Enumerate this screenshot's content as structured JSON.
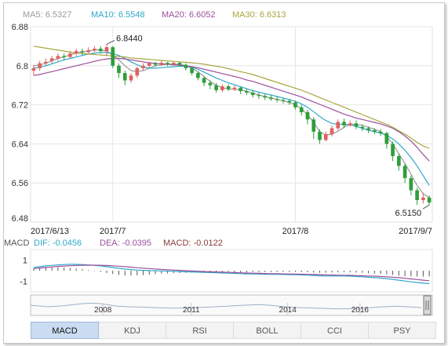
{
  "chart_data": {
    "type": "candlestick",
    "ma_legend": [
      {
        "label": "MA5: 6.5327",
        "color": "#9a9a9a"
      },
      {
        "label": "MA10: 6.5548",
        "color": "#2ea8c9"
      },
      {
        "label": "MA20: 6.6052",
        "color": "#9c4f9c"
      },
      {
        "label": "MA30: 6.6313",
        "color": "#a9a640"
      }
    ],
    "y_ticks": [
      "6.88",
      "6.8",
      "6.72",
      "6.64",
      "6.56",
      "6.48"
    ],
    "ylim": [
      6.48,
      6.88
    ],
    "x_labels": [
      {
        "label": "2017/6/13",
        "index": 0
      },
      {
        "label": "2017/7",
        "index": 13
      },
      {
        "label": "2017/8",
        "index": 43
      },
      {
        "label": "2017/9/7",
        "index": 65
      }
    ],
    "annotations": [
      {
        "text": "6.8440",
        "index": 12,
        "value": 6.844
      },
      {
        "text": "6.5150",
        "index": 65,
        "value": 6.515
      }
    ],
    "candles": [
      [
        6.79,
        6.795,
        6.78,
        6.802
      ],
      [
        6.795,
        6.805,
        6.79,
        6.81
      ],
      [
        6.805,
        6.808,
        6.8,
        6.815
      ],
      [
        6.81,
        6.815,
        6.805,
        6.82
      ],
      [
        6.815,
        6.82,
        6.81,
        6.825
      ],
      [
        6.82,
        6.818,
        6.812,
        6.825
      ],
      [
        6.818,
        6.825,
        6.815,
        6.83
      ],
      [
        6.825,
        6.83,
        6.82,
        6.835
      ],
      [
        6.83,
        6.828,
        6.822,
        6.835
      ],
      [
        6.828,
        6.832,
        6.825,
        6.838
      ],
      [
        6.832,
        6.835,
        6.828,
        6.84
      ],
      [
        6.835,
        6.83,
        6.825,
        6.84
      ],
      [
        6.83,
        6.838,
        6.82,
        6.844
      ],
      [
        6.838,
        6.8,
        6.795,
        6.84
      ],
      [
        6.8,
        6.785,
        6.775,
        6.805
      ],
      [
        6.785,
        6.77,
        6.76,
        6.79
      ],
      [
        6.77,
        6.78,
        6.765,
        6.785
      ],
      [
        6.78,
        6.795,
        6.775,
        6.798
      ],
      [
        6.795,
        6.8,
        6.79,
        6.805
      ],
      [
        6.8,
        6.805,
        6.795,
        6.808
      ],
      [
        6.805,
        6.802,
        6.798,
        6.808
      ],
      [
        6.802,
        6.806,
        6.8,
        6.81
      ],
      [
        6.806,
        6.803,
        6.799,
        6.808
      ],
      [
        6.803,
        6.806,
        6.8,
        6.809
      ],
      [
        6.806,
        6.802,
        6.798,
        6.808
      ],
      [
        6.802,
        6.795,
        6.79,
        6.805
      ],
      [
        6.795,
        6.785,
        6.78,
        6.798
      ],
      [
        6.785,
        6.775,
        6.77,
        6.788
      ],
      [
        6.775,
        6.765,
        6.758,
        6.778
      ],
      [
        6.765,
        6.76,
        6.752,
        6.77
      ],
      [
        6.76,
        6.75,
        6.745,
        6.765
      ],
      [
        6.75,
        6.758,
        6.746,
        6.762
      ],
      [
        6.758,
        6.752,
        6.748,
        6.762
      ],
      [
        6.752,
        6.755,
        6.748,
        6.76
      ],
      [
        6.755,
        6.748,
        6.742,
        6.758
      ],
      [
        6.748,
        6.745,
        6.74,
        6.752
      ],
      [
        6.745,
        6.74,
        6.735,
        6.75
      ],
      [
        6.74,
        6.738,
        6.732,
        6.745
      ],
      [
        6.738,
        6.735,
        6.73,
        6.742
      ],
      [
        6.735,
        6.732,
        6.728,
        6.74
      ],
      [
        6.732,
        6.73,
        6.725,
        6.738
      ],
      [
        6.73,
        6.728,
        6.722,
        6.735
      ],
      [
        6.728,
        6.725,
        6.72,
        6.732
      ],
      [
        6.725,
        6.715,
        6.71,
        6.728
      ],
      [
        6.715,
        6.705,
        6.698,
        6.72
      ],
      [
        6.705,
        6.69,
        6.68,
        6.71
      ],
      [
        6.69,
        6.665,
        6.65,
        6.695
      ],
      [
        6.665,
        6.648,
        6.64,
        6.67
      ],
      [
        6.648,
        6.66,
        6.645,
        6.665
      ],
      [
        6.66,
        6.672,
        6.655,
        6.678
      ],
      [
        6.672,
        6.685,
        6.668,
        6.69
      ],
      [
        6.685,
        6.678,
        6.672,
        6.692
      ],
      [
        6.678,
        6.682,
        6.675,
        6.688
      ],
      [
        6.682,
        6.675,
        6.67,
        6.688
      ],
      [
        6.675,
        6.672,
        6.666,
        6.68
      ],
      [
        6.672,
        6.668,
        6.662,
        6.676
      ],
      [
        6.668,
        6.665,
        6.66,
        6.672
      ],
      [
        6.665,
        6.662,
        6.656,
        6.67
      ],
      [
        6.662,
        6.64,
        6.63,
        6.665
      ],
      [
        6.64,
        6.615,
        6.605,
        6.645
      ],
      [
        6.615,
        6.595,
        6.585,
        6.62
      ],
      [
        6.595,
        6.57,
        6.56,
        6.6
      ],
      [
        6.57,
        6.545,
        6.535,
        6.575
      ],
      [
        6.545,
        6.525,
        6.515,
        6.55
      ],
      [
        6.525,
        6.53,
        6.518,
        6.54
      ],
      [
        6.53,
        6.52,
        6.515,
        6.535
      ]
    ],
    "ma_lines": {
      "ma5": [
        6.8,
        6.802,
        6.805,
        6.81,
        6.815,
        6.818,
        6.822,
        6.826,
        6.828,
        6.83,
        6.832,
        6.832,
        6.83,
        6.822,
        6.812,
        6.8,
        6.79,
        6.788,
        6.79,
        6.795,
        6.8,
        6.802,
        6.803,
        6.803,
        6.803,
        6.8,
        6.795,
        6.788,
        6.778,
        6.768,
        6.76,
        6.755,
        6.752,
        6.752,
        6.75,
        6.748,
        6.744,
        6.74,
        6.737,
        6.734,
        6.731,
        6.728,
        6.725,
        6.72,
        6.712,
        6.7,
        6.684,
        6.665,
        6.658,
        6.66,
        6.666,
        6.674,
        6.68,
        6.68,
        6.678,
        6.674,
        6.67,
        6.665,
        6.655,
        6.64,
        6.62,
        6.6,
        6.578,
        6.555,
        6.538,
        6.53
      ],
      "ma10": [
        6.795,
        6.797,
        6.8,
        6.804,
        6.808,
        6.812,
        6.815,
        6.818,
        6.821,
        6.824,
        6.826,
        6.827,
        6.827,
        6.825,
        6.821,
        6.815,
        6.808,
        6.802,
        6.797,
        6.795,
        6.795,
        6.796,
        6.797,
        6.798,
        6.799,
        6.799,
        6.797,
        6.793,
        6.787,
        6.781,
        6.775,
        6.77,
        6.765,
        6.761,
        6.757,
        6.753,
        6.749,
        6.746,
        6.743,
        6.74,
        6.737,
        6.734,
        6.731,
        6.727,
        6.722,
        6.715,
        6.706,
        6.696,
        6.688,
        6.682,
        6.68,
        6.68,
        6.679,
        6.676,
        6.672,
        6.668,
        6.665,
        6.662,
        6.658,
        6.65,
        6.64,
        6.627,
        6.612,
        6.595,
        6.575,
        6.555
      ],
      "ma20": [
        6.78,
        6.782,
        6.785,
        6.788,
        6.791,
        6.794,
        6.797,
        6.8,
        6.803,
        6.806,
        6.809,
        6.812,
        6.814,
        6.815,
        6.815,
        6.814,
        6.812,
        6.81,
        6.808,
        6.806,
        6.805,
        6.804,
        6.803,
        6.802,
        6.801,
        6.8,
        6.798,
        6.796,
        6.793,
        6.79,
        6.787,
        6.784,
        6.781,
        6.778,
        6.775,
        6.771,
        6.768,
        6.764,
        6.76,
        6.756,
        6.752,
        6.748,
        6.744,
        6.74,
        6.736,
        6.731,
        6.726,
        6.721,
        6.716,
        6.711,
        6.706,
        6.701,
        6.697,
        6.693,
        6.69,
        6.687,
        6.684,
        6.681,
        6.677,
        6.672,
        6.665,
        6.656,
        6.646,
        6.633,
        6.618,
        6.605
      ],
      "ma30": [
        6.84,
        6.838,
        6.836,
        6.834,
        6.832,
        6.83,
        6.828,
        6.826,
        6.825,
        6.824,
        6.823,
        6.822,
        6.821,
        6.82,
        6.819,
        6.818,
        6.816,
        6.815,
        6.814,
        6.813,
        6.812,
        6.811,
        6.81,
        6.809,
        6.808,
        6.807,
        6.806,
        6.805,
        6.803,
        6.801,
        6.799,
        6.797,
        6.794,
        6.791,
        6.788,
        6.785,
        6.782,
        6.778,
        6.774,
        6.77,
        6.766,
        6.762,
        6.758,
        6.754,
        6.75,
        6.745,
        6.74,
        6.735,
        6.73,
        6.725,
        6.72,
        6.715,
        6.71,
        6.705,
        6.7,
        6.695,
        6.69,
        6.685,
        6.68,
        6.674,
        6.667,
        6.66,
        6.652,
        6.643,
        6.636,
        6.631
      ]
    },
    "colors": {
      "up": "#e06060",
      "down": "#2e9e3a",
      "grid": "#e6e6e6"
    },
    "macd": {
      "tag": "MACD",
      "legend": [
        {
          "label": "DIF: -0.0456",
          "color": "#2ea8c9"
        },
        {
          "label": "DEA: -0.0395",
          "color": "#9c4f9c"
        },
        {
          "label": "MACD: -0.0122",
          "color": "#8a3a3a"
        }
      ],
      "y_ticks": [
        "1",
        "-1"
      ],
      "ylim": [
        -2,
        2
      ],
      "dif": [
        0.3,
        0.38,
        0.45,
        0.5,
        0.55,
        0.58,
        0.6,
        0.6,
        0.58,
        0.55,
        0.5,
        0.45,
        0.38,
        0.3,
        0.22,
        0.15,
        0.1,
        0.06,
        0.03,
        0.01,
        0.0,
        -0.02,
        -0.04,
        -0.06,
        -0.08,
        -0.1,
        -0.12,
        -0.14,
        -0.16,
        -0.18,
        -0.2,
        -0.22,
        -0.24,
        -0.26,
        -0.28,
        -0.3,
        -0.31,
        -0.32,
        -0.33,
        -0.34,
        -0.35,
        -0.36,
        -0.37,
        -0.38,
        -0.4,
        -0.42,
        -0.45,
        -0.48,
        -0.5,
        -0.5,
        -0.5,
        -0.5,
        -0.52,
        -0.55,
        -0.58,
        -0.62,
        -0.66,
        -0.7,
        -0.75,
        -0.82,
        -0.9,
        -0.98,
        -1.05,
        -1.12,
        -1.18,
        -1.22
      ],
      "dea": [
        0.2,
        0.25,
        0.3,
        0.35,
        0.4,
        0.44,
        0.47,
        0.5,
        0.51,
        0.52,
        0.52,
        0.51,
        0.49,
        0.46,
        0.42,
        0.38,
        0.33,
        0.28,
        0.24,
        0.2,
        0.16,
        0.12,
        0.09,
        0.06,
        0.03,
        0.0,
        -0.03,
        -0.05,
        -0.08,
        -0.1,
        -0.12,
        -0.14,
        -0.16,
        -0.18,
        -0.2,
        -0.22,
        -0.24,
        -0.25,
        -0.27,
        -0.28,
        -0.29,
        -0.3,
        -0.31,
        -0.32,
        -0.33,
        -0.35,
        -0.36,
        -0.38,
        -0.4,
        -0.41,
        -0.42,
        -0.43,
        -0.44,
        -0.46,
        -0.48,
        -0.5,
        -0.52,
        -0.55,
        -0.58,
        -0.62,
        -0.66,
        -0.72,
        -0.78,
        -0.84,
        -0.9,
        -0.95
      ],
      "hist": [
        0.2,
        0.26,
        0.3,
        0.3,
        0.3,
        0.28,
        0.26,
        0.2,
        0.14,
        0.06,
        -0.04,
        -0.12,
        -0.22,
        -0.32,
        -0.4,
        -0.46,
        -0.46,
        -0.44,
        -0.42,
        -0.38,
        -0.32,
        -0.28,
        -0.26,
        -0.24,
        -0.22,
        -0.2,
        -0.18,
        -0.18,
        -0.16,
        -0.16,
        -0.16,
        -0.16,
        -0.16,
        -0.16,
        -0.16,
        -0.16,
        -0.14,
        -0.14,
        -0.12,
        -0.12,
        -0.12,
        -0.12,
        -0.12,
        -0.12,
        -0.14,
        -0.14,
        -0.18,
        -0.2,
        -0.2,
        -0.18,
        -0.16,
        -0.14,
        -0.16,
        -0.18,
        -0.2,
        -0.24,
        -0.28,
        -0.3,
        -0.34,
        -0.4,
        -0.48,
        -0.52,
        -0.54,
        -0.56,
        -0.56,
        -0.54
      ]
    },
    "navigator": {
      "year_labels": [
        "2008",
        "2011",
        "2014",
        "2016"
      ],
      "series": [
        0.55,
        0.5,
        0.45,
        0.48,
        0.52,
        0.6,
        0.66,
        0.7,
        0.68,
        0.6,
        0.5,
        0.46,
        0.44,
        0.42,
        0.4,
        0.38,
        0.36,
        0.35,
        0.36,
        0.38,
        0.4,
        0.42,
        0.45,
        0.48,
        0.52,
        0.55,
        0.58,
        0.6,
        0.56,
        0.5,
        0.44,
        0.4,
        0.38,
        0.36,
        0.34,
        0.32,
        0.3,
        0.3,
        0.32,
        0.34,
        0.38,
        0.42,
        0.46,
        0.48,
        0.46,
        0.42,
        0.38
      ]
    }
  },
  "tabs": [
    {
      "label": "MACD",
      "active": true
    },
    {
      "label": "KDJ",
      "active": false
    },
    {
      "label": "RSI",
      "active": false
    },
    {
      "label": "BOLL",
      "active": false
    },
    {
      "label": "CCI",
      "active": false
    },
    {
      "label": "PSY",
      "active": false
    }
  ]
}
